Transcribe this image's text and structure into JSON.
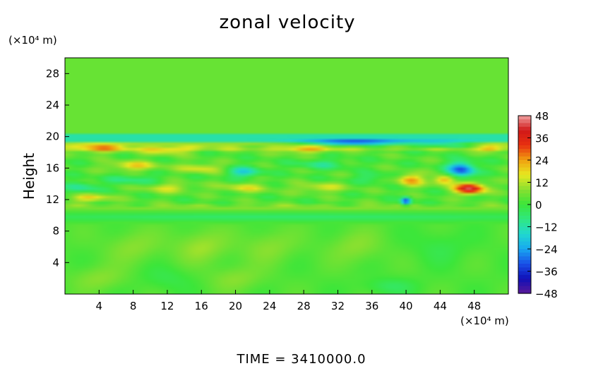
{
  "chart_data": {
    "type": "heatmap",
    "title": "zonal velocity",
    "ylabel": "Height",
    "x_unit": "(×10⁴ m)",
    "y_unit": "(×10⁴ m)",
    "xlim": [
      0,
      52
    ],
    "ylim": [
      0,
      30
    ],
    "x_ticks": [
      4,
      8,
      12,
      16,
      20,
      24,
      28,
      32,
      36,
      40,
      44,
      48
    ],
    "x_tick_labels": [
      "4",
      "8",
      "12",
      "16",
      "20",
      "24",
      "28",
      "32",
      "36",
      "40",
      "44",
      "48"
    ],
    "y_ticks": [
      4,
      8,
      12,
      16,
      20,
      24,
      28
    ],
    "y_tick_labels": [
      "4",
      "8",
      "12",
      "16",
      "20",
      "24",
      "28"
    ],
    "colorbar": {
      "min": -48,
      "max": 48,
      "ticks": [
        48,
        36,
        24,
        12,
        0,
        -12,
        -24,
        -36,
        -48
      ],
      "tick_labels": [
        "48",
        "36",
        "24",
        "12",
        "0",
        "−12",
        "−24",
        "−36",
        "−48"
      ],
      "colors": [
        "#5a1a9a",
        "#1010b8",
        "#1a50e8",
        "#18a8f0",
        "#20d8d0",
        "#30e880",
        "#3ce63a",
        "#88e030",
        "#e8e820",
        "#f0a010",
        "#e83010",
        "#d01818",
        "#f0a0a0"
      ]
    },
    "grid": false,
    "features": [
      {
        "x": 34,
        "y": 19.2,
        "sx": 6,
        "sy": 0.35,
        "value": -34
      },
      {
        "x": 44,
        "y": 19.0,
        "sx": 4,
        "sy": 0.4,
        "value": -20
      },
      {
        "x": 46.5,
        "y": 15.8,
        "sx": 1.6,
        "sy": 1.0,
        "value": -34
      },
      {
        "x": 47.5,
        "y": 13.4,
        "sx": 1.8,
        "sy": 0.7,
        "value": 40
      },
      {
        "x": 44.5,
        "y": 14.5,
        "sx": 1.3,
        "sy": 0.6,
        "value": 24
      },
      {
        "x": 40,
        "y": 11.8,
        "sx": 0.6,
        "sy": 0.5,
        "value": -36
      },
      {
        "x": 40.5,
        "y": 14.5,
        "sx": 1.5,
        "sy": 0.8,
        "value": 22
      },
      {
        "x": 21,
        "y": 15.5,
        "sx": 2,
        "sy": 0.7,
        "value": -18
      },
      {
        "x": 4,
        "y": 18.5,
        "sx": 3,
        "sy": 0.6,
        "value": 16
      },
      {
        "x": 12,
        "y": 18.2,
        "sx": 3,
        "sy": 0.5,
        "value": 14
      },
      {
        "x": 28,
        "y": 18.3,
        "sx": 3,
        "sy": 0.5,
        "value": 14
      },
      {
        "x": 50,
        "y": 18.5,
        "sx": 1.5,
        "sy": 0.5,
        "value": 16
      },
      {
        "x": 8,
        "y": 16.3,
        "sx": 3,
        "sy": 0.6,
        "value": 16
      },
      {
        "x": 16,
        "y": 16.0,
        "sx": 2.5,
        "sy": 0.6,
        "value": 14
      },
      {
        "x": 2,
        "y": 13.5,
        "sx": 2,
        "sy": 0.7,
        "value": -12
      },
      {
        "x": 3,
        "y": 12.2,
        "sx": 2.5,
        "sy": 0.5,
        "value": 16
      },
      {
        "x": 12,
        "y": 13.5,
        "sx": 3,
        "sy": 0.6,
        "value": 12
      },
      {
        "x": 21,
        "y": 13.5,
        "sx": 3,
        "sy": 0.6,
        "value": 12
      },
      {
        "x": 30,
        "y": 13.5,
        "sx": 3,
        "sy": 0.6,
        "value": 12
      },
      {
        "x": 8,
        "y": 14.5,
        "sx": 3,
        "sy": 0.6,
        "value": -10
      },
      {
        "x": 30,
        "y": 16.5,
        "sx": 3,
        "sy": 0.6,
        "value": -10
      },
      {
        "x": 36,
        "y": 14.8,
        "sx": 2,
        "sy": 0.6,
        "value": -8
      },
      {
        "x": 26,
        "y": 9.8,
        "sx": 40,
        "sy": 0.5,
        "value": -8
      },
      {
        "x": 26,
        "y": 11.0,
        "sx": 40,
        "sy": 0.4,
        "value": 6
      },
      {
        "x": 16,
        "y": 6,
        "sx": 3,
        "sy": 2,
        "value": 8
      },
      {
        "x": 8,
        "y": 6,
        "sx": 3,
        "sy": 2,
        "value": 6
      },
      {
        "x": 24,
        "y": 6,
        "sx": 3,
        "sy": 2,
        "value": 6
      },
      {
        "x": 34,
        "y": 6,
        "sx": 3,
        "sy": 2,
        "value": 6
      },
      {
        "x": 4,
        "y": 2,
        "sx": 3,
        "sy": 1.5,
        "value": 6
      },
      {
        "x": 12,
        "y": 2,
        "sx": 3,
        "sy": 1.5,
        "value": -4
      },
      {
        "x": 20,
        "y": 2,
        "sx": 3,
        "sy": 1.5,
        "value": 6
      },
      {
        "x": 38,
        "y": 1,
        "sx": 3,
        "sy": 1,
        "value": -6
      },
      {
        "x": 44,
        "y": 6,
        "sx": 3,
        "sy": 2,
        "value": -4
      }
    ]
  },
  "footer": {
    "time_label": "TIME = 3410000.0"
  }
}
